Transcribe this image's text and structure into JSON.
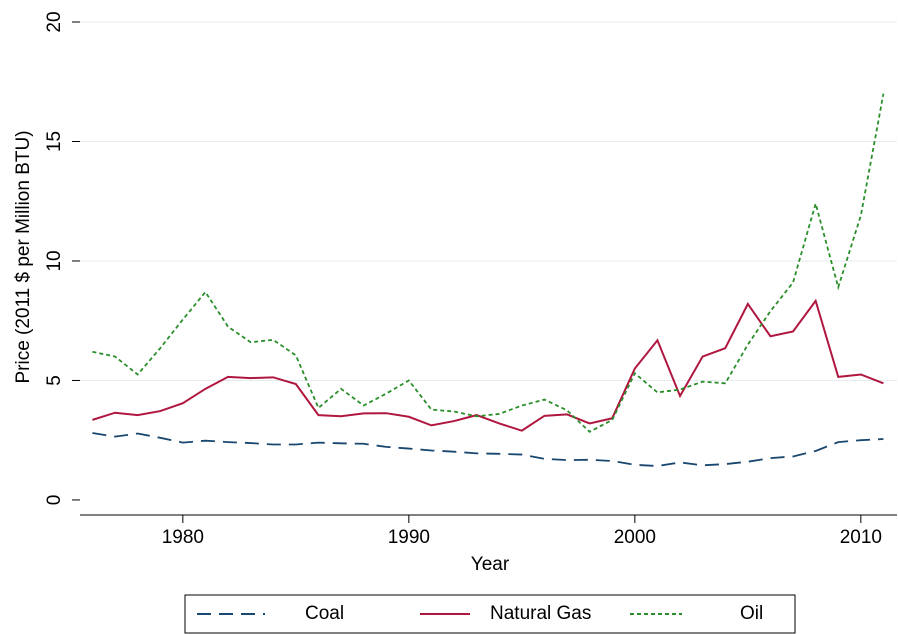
{
  "chart_data": {
    "type": "line",
    "x_label": "Year",
    "y_label": "Price (2011 $ per Million BTU)",
    "x": [
      1976,
      1977,
      1978,
      1979,
      1980,
      1981,
      1982,
      1983,
      1984,
      1985,
      1986,
      1987,
      1988,
      1989,
      1990,
      1991,
      1992,
      1993,
      1994,
      1995,
      1996,
      1997,
      1998,
      1999,
      2000,
      2001,
      2002,
      2003,
      2004,
      2005,
      2006,
      2007,
      2008,
      2009,
      2010,
      2011
    ],
    "series": [
      {
        "name": "Coal",
        "color": "#1a476f",
        "dash": "dash",
        "values": [
          2.8,
          2.65,
          2.78,
          2.6,
          2.4,
          2.48,
          2.42,
          2.38,
          2.32,
          2.32,
          2.4,
          2.37,
          2.35,
          2.22,
          2.15,
          2.07,
          2.02,
          1.95,
          1.93,
          1.9,
          1.72,
          1.67,
          1.68,
          1.63,
          1.47,
          1.42,
          1.57,
          1.45,
          1.5,
          1.6,
          1.75,
          1.82,
          2.05,
          2.42,
          2.5,
          2.55
        ]
      },
      {
        "name": "Natural Gas",
        "color": "#b0173f",
        "dash": "solid",
        "values": [
          3.35,
          3.65,
          3.55,
          3.72,
          4.05,
          4.65,
          5.15,
          5.1,
          5.13,
          4.85,
          3.55,
          3.5,
          3.62,
          3.63,
          3.48,
          3.12,
          3.3,
          3.55,
          3.2,
          2.9,
          3.52,
          3.58,
          3.2,
          3.42,
          5.5,
          6.68,
          4.35,
          6.0,
          6.35,
          8.2,
          6.85,
          7.05,
          8.33,
          5.15,
          5.25,
          4.88
        ]
      },
      {
        "name": "Oil",
        "color": "#2a8f2a",
        "dash": "dot",
        "values": [
          6.2,
          6.0,
          5.25,
          6.35,
          7.55,
          8.7,
          7.25,
          6.6,
          6.7,
          6.05,
          3.85,
          4.65,
          3.95,
          4.45,
          5.0,
          3.78,
          3.7,
          3.5,
          3.6,
          3.95,
          4.2,
          3.75,
          2.85,
          3.35,
          5.3,
          4.5,
          4.62,
          4.95,
          4.88,
          6.5,
          7.9,
          9.1,
          12.4,
          8.9,
          11.9,
          17.0
        ]
      }
    ],
    "xlim": [
      1975.45,
      2011.6
    ],
    "ylim": [
      -0.63,
      20
    ],
    "xticks": [
      1980,
      1990,
      2000,
      2010
    ],
    "yticks": [
      0,
      5,
      10,
      15,
      20
    ],
    "grid": true
  }
}
